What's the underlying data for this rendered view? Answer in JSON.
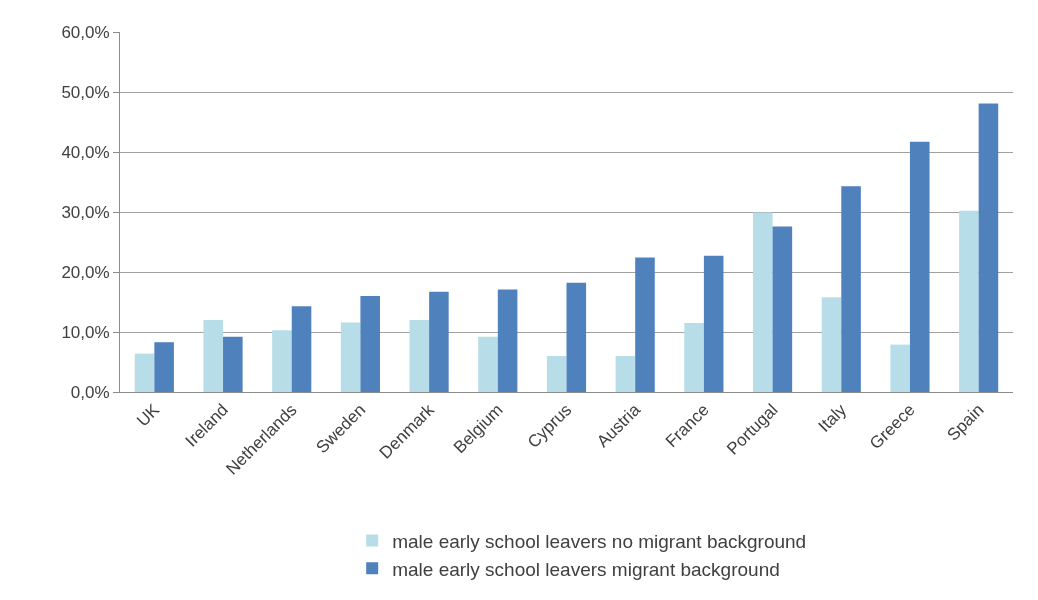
{
  "chart_data": {
    "type": "bar",
    "categories": [
      "UK",
      "Ireland",
      "Netherlands",
      "Sweden",
      "Denmark",
      "Belgium",
      "Cyprus",
      "Austria",
      "France",
      "Portugal",
      "Italy",
      "Greece",
      "Spain"
    ],
    "series": [
      {
        "name": "male early school leavers no migrant background",
        "color": "#b7dde8",
        "values": [
          6.4,
          12.0,
          10.3,
          11.6,
          12.0,
          9.2,
          6.0,
          6.0,
          11.5,
          29.9,
          15.8,
          7.9,
          30.2
        ]
      },
      {
        "name": "male early school leavers migrant background",
        "color": "#4f81bd",
        "values": [
          8.3,
          9.2,
          14.3,
          16.0,
          16.7,
          17.1,
          18.2,
          22.4,
          22.7,
          27.6,
          34.3,
          41.7,
          48.1
        ]
      }
    ],
    "ylim": [
      0,
      60
    ],
    "yticks": [
      {
        "value": 0,
        "label": "0,0%"
      },
      {
        "value": 10,
        "label": "10,0%"
      },
      {
        "value": 20,
        "label": "20,0%"
      },
      {
        "value": 30,
        "label": "30,0%"
      },
      {
        "value": 40,
        "label": "40,0%"
      },
      {
        "value": 50,
        "label": "50,0%"
      },
      {
        "value": 60,
        "label": "60,0%"
      }
    ],
    "grid": "y",
    "legend": "bottom"
  }
}
